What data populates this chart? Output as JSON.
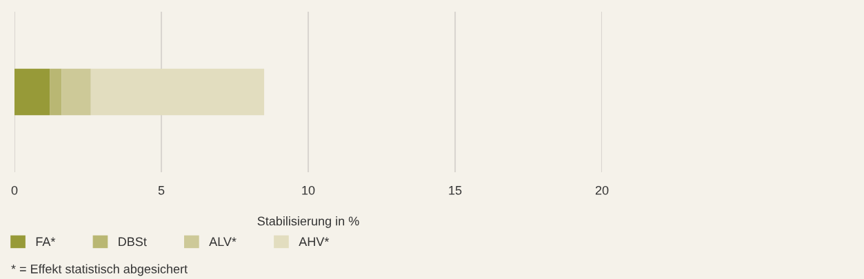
{
  "chart_data": {
    "type": "bar",
    "orientation": "horizontal",
    "stacked": true,
    "categories": [
      null
    ],
    "series": [
      {
        "name": "FA*",
        "color": "#979a38",
        "values": [
          1.2
        ]
      },
      {
        "name": "DBSt",
        "color": "#b9b773",
        "values": [
          0.4
        ]
      },
      {
        "name": "ALV*",
        "color": "#cdc998",
        "values": [
          1.0
        ]
      },
      {
        "name": "AHV*",
        "color": "#e2ddbf",
        "values": [
          5.9
        ]
      }
    ],
    "xlabel": "Stabilisierung in %",
    "xlim": [
      0,
      20
    ],
    "xticks": [
      0,
      5,
      10,
      15,
      20
    ],
    "grid": "x",
    "legend": "bottom left",
    "tick_labels": "x",
    "annotations": [
      "* = Effekt statistisch abgesichert"
    ]
  }
}
